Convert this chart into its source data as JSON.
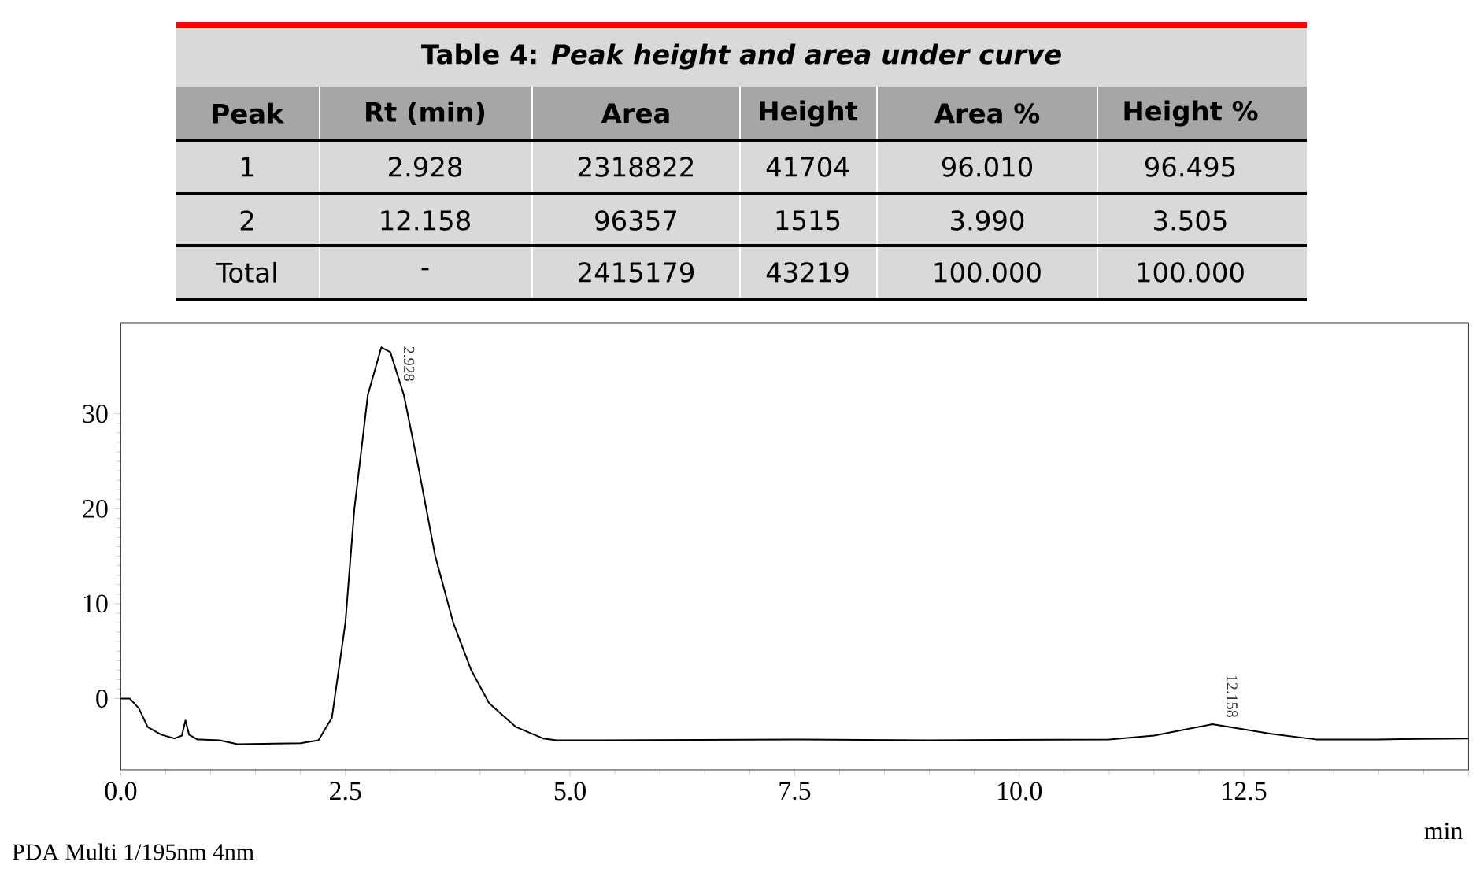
{
  "chart_data": {
    "type": "line",
    "title": "Table 4: *Peak height and area under curve*",
    "xlabel": "min",
    "x": [
      0,
      0.1,
      0.2,
      0.3,
      0.45,
      0.6,
      0.68,
      0.72,
      0.76,
      0.85,
      1.1,
      1.3,
      2.0,
      2.2,
      2.35,
      2.5,
      2.6,
      2.75,
      2.9,
      3.0,
      3.15,
      3.3,
      3.5,
      3.7,
      3.9,
      4.1,
      4.4,
      4.7,
      4.85,
      5.0,
      7.5,
      9.0,
      11.0,
      11.5,
      12.15,
      12.8,
      13.3,
      14.0,
      15.0
    ],
    "values": [
      0,
      0,
      -1,
      -3,
      -3.8,
      -4.2,
      -3.9,
      -2.3,
      -3.8,
      -4.3,
      -4.4,
      -4.8,
      -4.7,
      -4.4,
      -2,
      8,
      20,
      32,
      37,
      36.5,
      32,
      25,
      15,
      8,
      3,
      -0.5,
      -3,
      -4.2,
      -4.4,
      -4.4,
      -4.3,
      -4.4,
      -4.3,
      -3.9,
      -2.7,
      -3.7,
      -4.3,
      -4.3,
      -4.2
    ],
    "color": "#000000",
    "xlim": [
      0,
      15
    ],
    "ylim": [
      -7.5,
      39.6
    ],
    "xticks": [
      {
        "value": 0,
        "label": "0.0"
      },
      {
        "value": 2.5,
        "label": "2.5"
      },
      {
        "value": 5,
        "label": "5.0"
      },
      {
        "value": 7.5,
        "label": "7.5"
      },
      {
        "value": 10,
        "label": "10.0"
      },
      {
        "value": 12.5,
        "label": "12.5"
      },
      {
        "value": 15,
        "label": null
      }
    ],
    "yticks": [
      0,
      10,
      20,
      30
    ],
    "grid": false,
    "marker": "none",
    "line_style": "solid",
    "annotations": [
      "Peak",
      "Rt (min)",
      "Area",
      "Height",
      "Area %",
      "Height %",
      "1",
      "2.928",
      "2318822",
      "41704",
      "96.010",
      "96.495",
      "2",
      "12.158",
      "96357",
      "1515",
      "3.990",
      "3.505",
      "Total",
      "-",
      "2415179",
      "43219",
      "100.000",
      "100.000",
      "PDA Multi 1/195nm 4nm",
      {
        "text": "2.928",
        "x": 2.928,
        "y": 37
      },
      {
        "text": "12.158",
        "x": 12.158,
        "y": -2.7
      }
    ]
  }
}
